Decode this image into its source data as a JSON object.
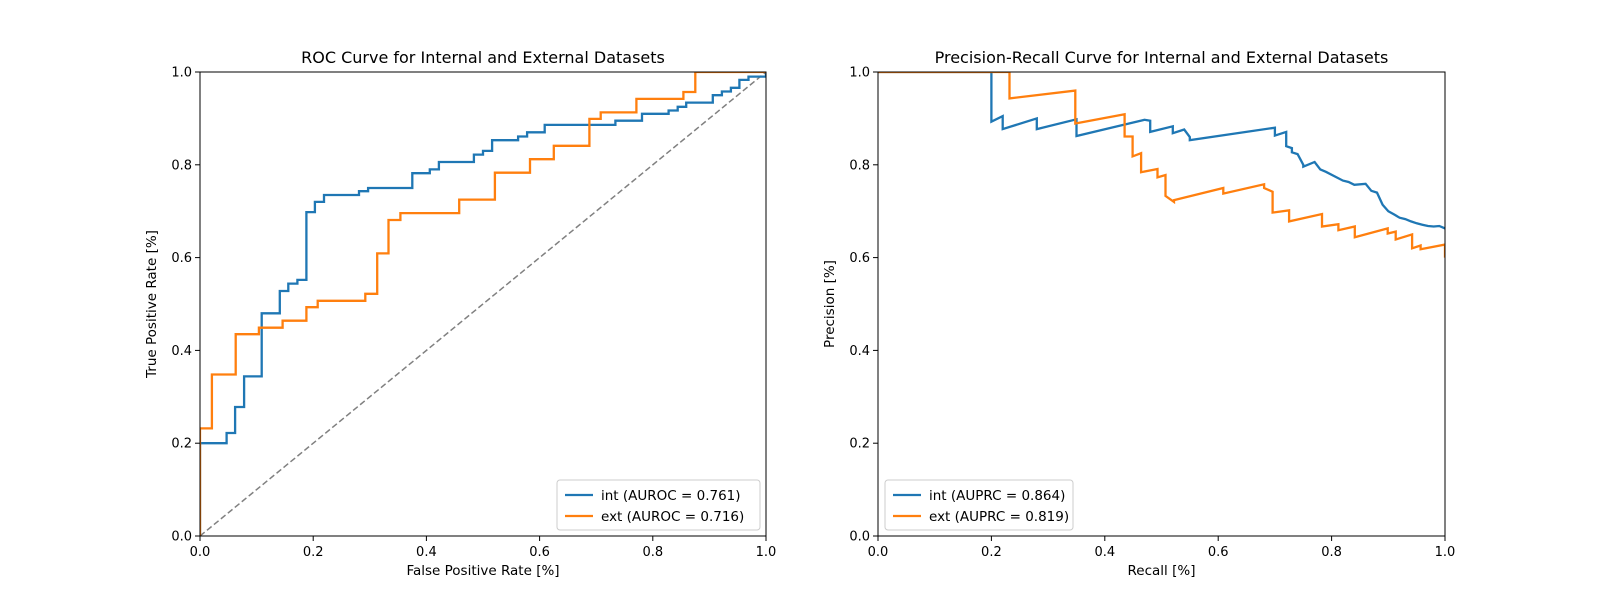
{
  "chart_data": [
    {
      "type": "line",
      "title": "ROC Curve for Internal and External Datasets",
      "xlabel": "False Positive Rate [%]",
      "ylabel": "True Positive Rate [%]",
      "xlim": [
        0,
        1
      ],
      "ylim": [
        0,
        1
      ],
      "xticks": [
        "0.0",
        "0.2",
        "0.4",
        "0.6",
        "0.8",
        "1.0"
      ],
      "yticks": [
        "0.0",
        "0.2",
        "0.4",
        "0.6",
        "0.8",
        "1.0"
      ],
      "grid": false,
      "legend_position": "lower-right",
      "reference_line": {
        "x": [
          0,
          1
        ],
        "y": [
          0,
          1
        ],
        "color": "#808080",
        "style": "dashed"
      },
      "series": [
        {
          "name": "int (AUROC = 0.761)",
          "color": "#1f77b4",
          "x": [
            0,
            0,
            0.047,
            0.047,
            0.062,
            0.062,
            0.078,
            0.078,
            0.109,
            0.109,
            0.141,
            0.141,
            0.156,
            0.156,
            0.172,
            0.172,
            0.188,
            0.188,
            0.203,
            0.203,
            0.219,
            0.219,
            0.281,
            0.281,
            0.297,
            0.297,
            0.375,
            0.375,
            0.406,
            0.406,
            0.422,
            0.422,
            0.484,
            0.484,
            0.5,
            0.5,
            0.516,
            0.516,
            0.562,
            0.562,
            0.578,
            0.578,
            0.609,
            0.609,
            0.734,
            0.734,
            0.781,
            0.781,
            0.828,
            0.828,
            0.844,
            0.844,
            0.859,
            0.859,
            0.906,
            0.906,
            0.922,
            0.922,
            0.938,
            0.938,
            0.953,
            0.953,
            0.969,
            0.969,
            1.0,
            1.0
          ],
          "y": [
            0,
            0.2,
            0.2,
            0.222,
            0.222,
            0.278,
            0.278,
            0.344,
            0.344,
            0.48,
            0.48,
            0.528,
            0.528,
            0.544,
            0.544,
            0.552,
            0.552,
            0.698,
            0.698,
            0.72,
            0.72,
            0.735,
            0.735,
            0.743,
            0.743,
            0.75,
            0.75,
            0.782,
            0.782,
            0.79,
            0.79,
            0.806,
            0.806,
            0.822,
            0.822,
            0.83,
            0.83,
            0.853,
            0.853,
            0.861,
            0.861,
            0.87,
            0.87,
            0.886,
            0.886,
            0.895,
            0.895,
            0.91,
            0.91,
            0.917,
            0.917,
            0.925,
            0.925,
            0.934,
            0.934,
            0.95,
            0.95,
            0.958,
            0.958,
            0.966,
            0.966,
            0.983,
            0.983,
            0.99,
            0.99,
            1.0
          ]
        },
        {
          "name": "ext (AUROC = 0.716)",
          "color": "#ff7f0e",
          "x": [
            0,
            0,
            0.021,
            0.021,
            0.063,
            0.063,
            0.104,
            0.104,
            0.146,
            0.146,
            0.188,
            0.188,
            0.208,
            0.208,
            0.229,
            0.229,
            0.292,
            0.292,
            0.313,
            0.313,
            0.333,
            0.333,
            0.354,
            0.354,
            0.458,
            0.458,
            0.521,
            0.521,
            0.583,
            0.583,
            0.625,
            0.625,
            0.688,
            0.688,
            0.708,
            0.708,
            0.771,
            0.771,
            0.854,
            0.854,
            0.875,
            0.875,
            0.896,
            0.896,
            1.0
          ],
          "y": [
            0,
            0.232,
            0.232,
            0.348,
            0.348,
            0.435,
            0.435,
            0.449,
            0.449,
            0.464,
            0.464,
            0.493,
            0.493,
            0.507,
            0.507,
            0.507,
            0.507,
            0.522,
            0.522,
            0.609,
            0.609,
            0.681,
            0.681,
            0.696,
            0.696,
            0.725,
            0.725,
            0.783,
            0.783,
            0.812,
            0.812,
            0.841,
            0.841,
            0.899,
            0.899,
            0.913,
            0.913,
            0.942,
            0.942,
            0.957,
            0.957,
            1.0,
            1.0,
            1.0,
            1.0
          ]
        }
      ]
    },
    {
      "type": "line",
      "title": "Precision-Recall Curve for Internal and External Datasets",
      "xlabel": "Recall [%]",
      "ylabel": "Precision [%]",
      "xlim": [
        0,
        1
      ],
      "ylim": [
        0,
        1
      ],
      "xticks": [
        "0.0",
        "0.2",
        "0.4",
        "0.6",
        "0.8",
        "1.0"
      ],
      "yticks": [
        "0.0",
        "0.2",
        "0.4",
        "0.6",
        "0.8",
        "1.0"
      ],
      "grid": false,
      "legend_position": "lower-left",
      "series": [
        {
          "name": "int (AUPRC = 0.864)",
          "color": "#1f77b4",
          "x": [
            0,
            0.2,
            0.2,
            0.22,
            0.22,
            0.28,
            0.28,
            0.35,
            0.35,
            0.47,
            0.48,
            0.48,
            0.52,
            0.52,
            0.54,
            0.55,
            0.55,
            0.7,
            0.7,
            0.72,
            0.72,
            0.73,
            0.73,
            0.74,
            0.75,
            0.75,
            0.77,
            0.78,
            0.79,
            0.82,
            0.83,
            0.84,
            0.86,
            0.87,
            0.88,
            0.89,
            0.9,
            0.91,
            0.92,
            0.93,
            0.94,
            0.95,
            0.96,
            0.97,
            0.98,
            0.99,
            1.0
          ],
          "y": [
            1.0,
            1.0,
            0.893,
            0.905,
            0.877,
            0.9,
            0.877,
            0.898,
            0.862,
            0.897,
            0.895,
            0.871,
            0.883,
            0.868,
            0.876,
            0.86,
            0.853,
            0.88,
            0.863,
            0.871,
            0.84,
            0.836,
            0.827,
            0.823,
            0.8,
            0.796,
            0.806,
            0.79,
            0.785,
            0.766,
            0.763,
            0.757,
            0.759,
            0.744,
            0.74,
            0.714,
            0.7,
            0.693,
            0.686,
            0.683,
            0.678,
            0.674,
            0.671,
            0.668,
            0.667,
            0.668,
            0.663
          ]
        },
        {
          "name": "ext (AUPRC = 0.819)",
          "color": "#ff7f0e",
          "x": [
            0,
            0.232,
            0.232,
            0.348,
            0.348,
            0.435,
            0.435,
            0.449,
            0.449,
            0.464,
            0.464,
            0.493,
            0.493,
            0.507,
            0.507,
            0.522,
            0.522,
            0.609,
            0.609,
            0.681,
            0.681,
            0.696,
            0.696,
            0.725,
            0.725,
            0.783,
            0.783,
            0.812,
            0.812,
            0.841,
            0.841,
            0.899,
            0.899,
            0.913,
            0.913,
            0.942,
            0.942,
            0.957,
            0.957,
            1.0,
            1.0
          ],
          "y": [
            1.0,
            1.0,
            0.943,
            0.96,
            0.889,
            0.909,
            0.861,
            0.861,
            0.818,
            0.825,
            0.784,
            0.791,
            0.773,
            0.778,
            0.733,
            0.72,
            0.724,
            0.75,
            0.738,
            0.758,
            0.75,
            0.742,
            0.697,
            0.702,
            0.678,
            0.694,
            0.667,
            0.672,
            0.659,
            0.667,
            0.644,
            0.663,
            0.652,
            0.656,
            0.639,
            0.65,
            0.62,
            0.626,
            0.618,
            0.628,
            0.6
          ]
        }
      ]
    }
  ]
}
